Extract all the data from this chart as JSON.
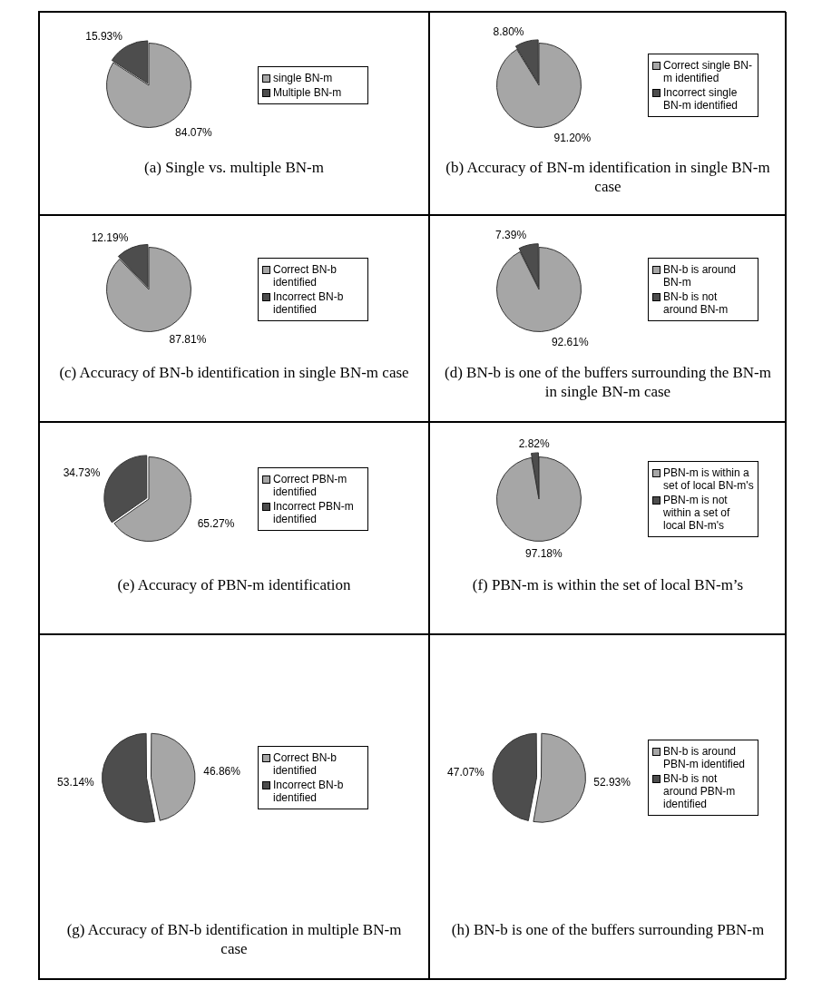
{
  "chart_data": [
    {
      "type": "pie",
      "title": "(a) Single vs. multiple BN-m",
      "categories": [
        "single BN-m",
        "Multiple BN-m"
      ],
      "values": [
        84.07,
        15.93
      ],
      "value_labels": [
        "84.07%",
        "15.93%"
      ],
      "colors": [
        "#a6a6a6",
        "#4d4d4d"
      ],
      "legend": "right"
    },
    {
      "type": "pie",
      "title": "(b) Accuracy of BN-m identification in single BN-m case",
      "categories": [
        "Correct single BN-m identified",
        "Incorrect single BN-m identified"
      ],
      "values": [
        91.2,
        8.8
      ],
      "value_labels": [
        "91.20%",
        "8.80%"
      ],
      "colors": [
        "#a6a6a6",
        "#4d4d4d"
      ],
      "legend": "right"
    },
    {
      "type": "pie",
      "title": "(c) Accuracy of BN-b identification in single BN-m case",
      "categories": [
        "Correct BN-b identified",
        "Incorrect BN-b identified"
      ],
      "values": [
        87.81,
        12.19
      ],
      "value_labels": [
        "87.81%",
        "12.19%"
      ],
      "colors": [
        "#a6a6a6",
        "#4d4d4d"
      ],
      "legend": "right"
    },
    {
      "type": "pie",
      "title": "(d) BN-b is one of the buffers surrounding the BN-m in single BN-m case",
      "categories": [
        "BN-b is around BN-m",
        "BN-b is not around BN-m"
      ],
      "values": [
        92.61,
        7.39
      ],
      "value_labels": [
        "92.61%",
        "7.39%"
      ],
      "colors": [
        "#a6a6a6",
        "#4d4d4d"
      ],
      "legend": "right"
    },
    {
      "type": "pie",
      "title": "(e) Accuracy of PBN-m identification",
      "categories": [
        "Correct PBN-m identified",
        "Incorrect PBN-m identified"
      ],
      "values": [
        65.27,
        34.73
      ],
      "value_labels": [
        "65.27%",
        "34.73%"
      ],
      "colors": [
        "#a6a6a6",
        "#4d4d4d"
      ],
      "legend": "right"
    },
    {
      "type": "pie",
      "title": "(f) PBN-m is within the set of local BN-m’s",
      "categories": [
        "PBN-m is within a set of local BN-m's",
        "PBN-m is not within a set of local BN-m's"
      ],
      "values": [
        97.18,
        2.82
      ],
      "value_labels": [
        "97.18%",
        "2.82%"
      ],
      "colors": [
        "#a6a6a6",
        "#4d4d4d"
      ],
      "legend": "right"
    },
    {
      "type": "pie",
      "title": "(g) Accuracy of BN-b identification in multiple BN-m case",
      "categories": [
        "Correct BN-b identified",
        "Incorrect BN-b identified"
      ],
      "values": [
        46.86,
        53.14
      ],
      "value_labels": [
        "46.86%",
        "53.14%"
      ],
      "colors": [
        "#a6a6a6",
        "#4d4d4d"
      ],
      "legend": "right"
    },
    {
      "type": "pie",
      "title": "(h) BN-b is one of the buffers surrounding PBN-m",
      "categories": [
        "BN-b is around PBN-m identified",
        "BN-b is not around PBN-m identified"
      ],
      "values": [
        52.93,
        47.07
      ],
      "value_labels": [
        "52.93%",
        "47.07%"
      ],
      "colors": [
        "#a6a6a6",
        "#4d4d4d"
      ],
      "legend": "right"
    }
  ]
}
